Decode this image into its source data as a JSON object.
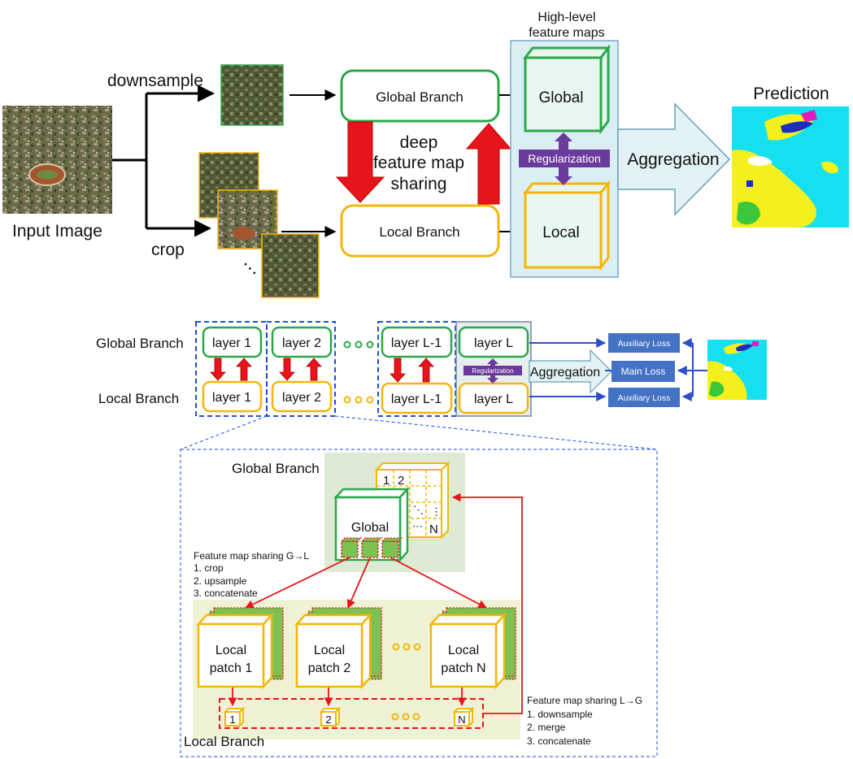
{
  "top": {
    "input_label": "Input Image",
    "downsample_label": "downsample",
    "crop_label": "crop",
    "global_branch": "Global Branch",
    "local_branch": "Local Branch",
    "sharing_line1": "deep",
    "sharing_line2": "feature map",
    "sharing_line3": "sharing",
    "hl_line1": "High-level",
    "hl_line2": "feature maps",
    "global": "Global",
    "local": "Local",
    "regularization": "Regularization",
    "aggregation": "Aggregation",
    "prediction": "Prediction",
    "ellipsis": "…"
  },
  "middle": {
    "global_branch": "Global Branch",
    "local_branch": "Local Branch",
    "layer1": "layer 1",
    "layer2": "layer 2",
    "layerL1": "layer L-1",
    "layerL": "layer L",
    "regularization": "Regularization",
    "aggregation": "Aggregation",
    "aux_loss": "Auxiliary Loss",
    "main_loss": "Main Loss"
  },
  "bottom": {
    "global_branch": "Global Branch",
    "local_branch": "Local Branch",
    "global": "Global",
    "grid_1": "1",
    "grid_2": "2",
    "grid_dots_v": "⋱",
    "grid_colon": "⋮",
    "grid_dots_h": "⋯",
    "grid_N": "N",
    "g2l_title": "Feature map sharing G→L",
    "g2l_1": "1. crop",
    "g2l_2": "2. upsample",
    "g2l_3": "3. concatenate",
    "lp1_a": "Local",
    "lp1_b": "patch 1",
    "lp2_a": "Local",
    "lp2_b": "patch 2",
    "lpN_a": "Local",
    "lpN_b": "patch N",
    "small_1": "1",
    "small_2": "2",
    "small_N": "N",
    "l2g_title": "Feature map sharing L→G",
    "l2g_1": "1. downsample",
    "l2g_2": "2. merge",
    "l2g_3": "3. concatenate"
  },
  "colors": {
    "global_green": "#2ca84a",
    "local_yellow": "#f5b60a",
    "red_arrow": "#e8141b",
    "regularization": "#6a3a9c",
    "loss_box": "#4472c4",
    "panel_blue": "#dbeef4"
  }
}
